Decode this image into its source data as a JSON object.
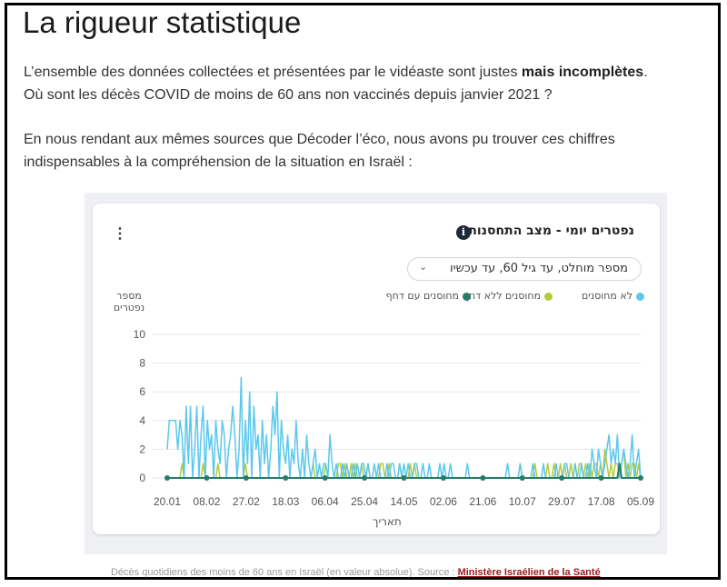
{
  "article": {
    "title": "La rigueur statistique",
    "p1_a": "L’ensemble des données collectées et présentées par le vidéaste sont justes ",
    "p1_bold": "mais incomplètes",
    "p1_b": ".",
    "p1_c": "Où sont les décès COVID de moins de 60 ans non vaccinés depuis janvier 2021 ?",
    "p2": "En nous rendant aux mêmes sources que Décoder l’éco, nous avons pu trouver ces chiffres indispensables à la compréhension de la situation en Israël :"
  },
  "widget": {
    "title": "נפטרים יומי - מצב התחסנות",
    "info_glyph": "i",
    "kebab_glyph": "⋮",
    "dropdown_value": "מספר מוחלט, עד גיל 60, עד עכשיו",
    "dropdown_chevron": "⌄",
    "ylabel": "מספר נפטרים",
    "xlabel": "תאריך"
  },
  "caption": {
    "text": "Décès quotidiens des moins de 60 ans en Israël (en valeur absolue). Source : ",
    "link": "Ministère Israélien de la Santé"
  },
  "colors": {
    "unvaccinated": "#5bc8ec",
    "vaccinated_no_booster": "#b5cc3a",
    "vaccinated_booster": "#2a7a6a",
    "grid": "#e6e6e6"
  },
  "chart_data": {
    "type": "line",
    "ylim": [
      0,
      10
    ],
    "yticks": [
      0,
      2,
      4,
      6,
      8,
      10
    ],
    "xticks": [
      "20.01",
      "08.02",
      "27.02",
      "18.03",
      "06.04",
      "25.04",
      "14.05",
      "02.06",
      "21.06",
      "10.07",
      "29.07",
      "17.08",
      "05.09"
    ],
    "legend_position": "top",
    "series": [
      {
        "name": "לא מחוסנים",
        "color": "#5bc8ec",
        "values": [
          2,
          4,
          4,
          4,
          4,
          2,
          4,
          3,
          0,
          5,
          1,
          5,
          0,
          2,
          5,
          0,
          3,
          5,
          0,
          4,
          2,
          3,
          0,
          4,
          2,
          1,
          4,
          3,
          0,
          2,
          3,
          5,
          3,
          0,
          2,
          7,
          0,
          4,
          1,
          6,
          0,
          5,
          2,
          3,
          0,
          4,
          1,
          3,
          0,
          2,
          5,
          3,
          6,
          0,
          4,
          2,
          1,
          3,
          0,
          2,
          1,
          4,
          1,
          0,
          2,
          0,
          3,
          1,
          0,
          1,
          2,
          0,
          1,
          0,
          1,
          1,
          0,
          3,
          1,
          0,
          1,
          0,
          0,
          1,
          0,
          1,
          0,
          0,
          1,
          0,
          1,
          0,
          1,
          1,
          0,
          1,
          0,
          0,
          1,
          0,
          1,
          0,
          0,
          0,
          1,
          0,
          1,
          1,
          0,
          0,
          1,
          0,
          1,
          0,
          1,
          0,
          0,
          1,
          1,
          0,
          0,
          1,
          0,
          0,
          1,
          0,
          0,
          0,
          0,
          1,
          0,
          1,
          0,
          0,
          1,
          0,
          0,
          0,
          0,
          0,
          0,
          0,
          1,
          0,
          0,
          0,
          0,
          0,
          0,
          0,
          0,
          0,
          0,
          0,
          0,
          0,
          0,
          0,
          0,
          0,
          0,
          1,
          0,
          0,
          0,
          0,
          0,
          1,
          0,
          0,
          0,
          0,
          0,
          1,
          0,
          0,
          0,
          0,
          1,
          0,
          0,
          0,
          0,
          0,
          1,
          0,
          0,
          0,
          1,
          1,
          0,
          0,
          0,
          1,
          0,
          0,
          1,
          0,
          0,
          1,
          0,
          2,
          1,
          0,
          2,
          1,
          0,
          1,
          2,
          3,
          1,
          2,
          1,
          3,
          0,
          1,
          2,
          1,
          0,
          1,
          3,
          0,
          1,
          2,
          0
        ]
      },
      {
        "name": "מחוסנים ללא דחף",
        "color": "#b5cc3a",
        "values": [
          0,
          0,
          0,
          0,
          0,
          0,
          0,
          1,
          0,
          0,
          0,
          0,
          0,
          0,
          0,
          0,
          0,
          1,
          0,
          0,
          0,
          0,
          0,
          0,
          1,
          0,
          0,
          0,
          0,
          0,
          0,
          0,
          0,
          0,
          0,
          0,
          0,
          1,
          0,
          0,
          0,
          0,
          0,
          0,
          0,
          0,
          0,
          0,
          0,
          0,
          0,
          0,
          0,
          0,
          0,
          0,
          0,
          0,
          0,
          0,
          0,
          0,
          0,
          0,
          0,
          0,
          0,
          0,
          0,
          1,
          0,
          0,
          0,
          0,
          0,
          1,
          0,
          0,
          0,
          0,
          0,
          1,
          1,
          0,
          1,
          0,
          0,
          1,
          0,
          1,
          0,
          0,
          1,
          0,
          0,
          1,
          0,
          0,
          0,
          0,
          0,
          1,
          1,
          0,
          0,
          1,
          0,
          0,
          0,
          0,
          1,
          0,
          0,
          0,
          0,
          1,
          0,
          1,
          0,
          0,
          0,
          0,
          0,
          0,
          0,
          0,
          0,
          0,
          0,
          0,
          0,
          0,
          0,
          0,
          0,
          0,
          0,
          0,
          0,
          0,
          0,
          0,
          0,
          0,
          0,
          0,
          0,
          0,
          0,
          0,
          0,
          0,
          0,
          0,
          0,
          0,
          0,
          0,
          0,
          0,
          0,
          0,
          0,
          0,
          0,
          0,
          0,
          1,
          0,
          0,
          0,
          0,
          0,
          0,
          1,
          0,
          0,
          0,
          0,
          0,
          1,
          0,
          0,
          1,
          0,
          0,
          1,
          0,
          1,
          0,
          0,
          1,
          0,
          1,
          0,
          1,
          1,
          0,
          1,
          0,
          1,
          0,
          1,
          1,
          0,
          1,
          0,
          2,
          1,
          0,
          1,
          0,
          1,
          1,
          0,
          1,
          2,
          0,
          1,
          0,
          1,
          1,
          0,
          1,
          0
        ]
      },
      {
        "name": "מחוסנים עם דחף",
        "color": "#2a7a6a",
        "values": [
          0,
          0,
          0,
          0,
          0,
          0,
          0,
          0,
          0,
          0,
          0,
          0,
          0,
          0,
          0,
          0,
          0,
          0,
          0,
          0,
          0,
          0,
          0,
          0,
          0,
          0,
          0,
          0,
          0,
          0,
          0,
          0,
          0,
          0,
          0,
          0,
          0,
          0,
          0,
          0,
          0,
          0,
          0,
          0,
          0,
          0,
          0,
          0,
          0,
          0,
          0,
          0,
          0,
          0,
          0,
          0,
          0,
          0,
          0,
          0,
          0,
          0,
          0,
          0,
          0,
          0,
          0,
          0,
          0,
          0,
          0,
          0,
          0,
          0,
          0,
          0,
          0,
          0,
          0,
          0,
          0,
          0,
          0,
          0,
          0,
          0,
          0,
          0,
          0,
          0,
          0,
          0,
          0,
          0,
          0,
          0,
          0,
          0,
          0,
          0,
          0,
          0,
          0,
          0,
          0,
          0,
          0,
          0,
          0,
          0,
          0,
          0,
          0,
          0,
          0,
          0,
          0,
          0,
          0,
          0,
          0,
          0,
          0,
          0,
          0,
          0,
          0,
          0,
          0,
          0,
          0,
          0,
          0,
          0,
          0,
          0,
          0,
          0,
          0,
          0,
          0,
          0,
          0,
          0,
          0,
          0,
          0,
          0,
          0,
          0,
          0,
          0,
          0,
          0,
          0,
          0,
          0,
          0,
          0,
          0,
          0,
          0,
          0,
          0,
          0,
          0,
          0,
          0,
          0,
          0,
          0,
          0,
          0,
          0,
          0,
          0,
          0,
          0,
          0,
          0,
          0,
          0,
          0,
          0,
          0,
          0,
          0,
          0,
          0,
          0,
          0,
          0,
          0,
          0,
          0,
          0,
          0,
          0,
          0,
          0,
          0,
          0,
          0,
          0,
          0,
          0,
          0,
          0,
          0,
          0,
          0,
          0,
          0,
          0,
          1,
          0,
          0,
          0,
          0,
          0,
          0,
          0,
          0,
          0,
          0
        ]
      }
    ]
  }
}
